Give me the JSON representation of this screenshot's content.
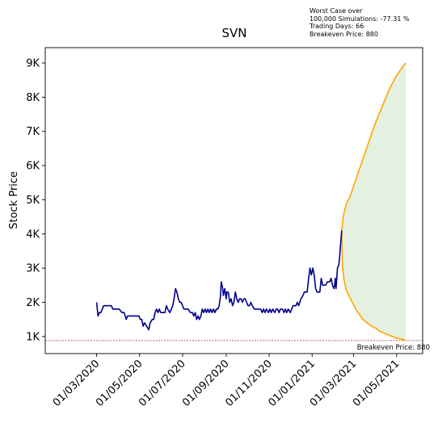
{
  "chart_data": {
    "type": "line",
    "title": "SVN",
    "ylabel": "Stock Price",
    "xlabel": "",
    "ylim": [
      500,
      9450
    ],
    "yticks": [
      {
        "value": 1000,
        "label": "1K"
      },
      {
        "value": 2000,
        "label": "2K"
      },
      {
        "value": 3000,
        "label": "3K"
      },
      {
        "value": 4000,
        "label": "4K"
      },
      {
        "value": 5000,
        "label": "5K"
      },
      {
        "value": 6000,
        "label": "6K"
      },
      {
        "value": 7000,
        "label": "7K"
      },
      {
        "value": 8000,
        "label": "8K"
      },
      {
        "value": 9000,
        "label": "9K"
      }
    ],
    "x_range": [
      "2019-12-19",
      "2021-06-07"
    ],
    "xticks": [
      {
        "date": "2020-03-01",
        "label": "01/03/2020"
      },
      {
        "date": "2020-05-01",
        "label": "01/05/2020"
      },
      {
        "date": "2020-07-01",
        "label": "01/07/2020"
      },
      {
        "date": "2020-09-01",
        "label": "01/09/2020"
      },
      {
        "date": "2020-11-01",
        "label": "01/11/2020"
      },
      {
        "date": "2021-01-01",
        "label": "01/01/2021"
      },
      {
        "date": "2021-03-01",
        "label": "01/03/2021"
      },
      {
        "date": "2021-05-01",
        "label": "01/05/2021"
      }
    ],
    "grid": false,
    "colors": {
      "history": "#00008b",
      "projection": "#ffa500",
      "band_fill": "#d5e8cf",
      "breakeven": "#b22222"
    },
    "history": {
      "name": "",
      "points": [
        [
          "2020-03-01",
          2000
        ],
        [
          "2020-03-03",
          1600
        ],
        [
          "2020-03-05",
          1700
        ],
        [
          "2020-03-07",
          1700
        ],
        [
          "2020-03-09",
          1800
        ],
        [
          "2020-03-11",
          1900
        ],
        [
          "2020-03-14",
          1900
        ],
        [
          "2020-03-18",
          1900
        ],
        [
          "2020-03-22",
          1900
        ],
        [
          "2020-03-24",
          1800
        ],
        [
          "2020-03-28",
          1800
        ],
        [
          "2020-04-02",
          1800
        ],
        [
          "2020-04-06",
          1700
        ],
        [
          "2020-04-09",
          1700
        ],
        [
          "2020-04-12",
          1500
        ],
        [
          "2020-04-14",
          1600
        ],
        [
          "2020-04-18",
          1600
        ],
        [
          "2020-04-22",
          1600
        ],
        [
          "2020-04-26",
          1600
        ],
        [
          "2020-04-30",
          1600
        ],
        [
          "2020-05-02",
          1500
        ],
        [
          "2020-05-04",
          1500
        ],
        [
          "2020-05-06",
          1300
        ],
        [
          "2020-05-08",
          1400
        ],
        [
          "2020-05-11",
          1300
        ],
        [
          "2020-05-14",
          1200
        ],
        [
          "2020-05-16",
          1400
        ],
        [
          "2020-05-19",
          1500
        ],
        [
          "2020-05-21",
          1500
        ],
        [
          "2020-05-23",
          1700
        ],
        [
          "2020-05-25",
          1800
        ],
        [
          "2020-05-27",
          1700
        ],
        [
          "2020-05-29",
          1800
        ],
        [
          "2020-05-31",
          1700
        ],
        [
          "2020-06-03",
          1700
        ],
        [
          "2020-06-06",
          1700
        ],
        [
          "2020-06-08",
          1900
        ],
        [
          "2020-06-10",
          1800
        ],
        [
          "2020-06-13",
          1700
        ],
        [
          "2020-06-15",
          1800
        ],
        [
          "2020-06-17",
          1900
        ],
        [
          "2020-06-19",
          2100
        ],
        [
          "2020-06-21",
          2400
        ],
        [
          "2020-06-23",
          2300
        ],
        [
          "2020-06-25",
          2100
        ],
        [
          "2020-06-27",
          2000
        ],
        [
          "2020-06-29",
          2000
        ],
        [
          "2020-07-01",
          1900
        ],
        [
          "2020-07-03",
          1800
        ],
        [
          "2020-07-06",
          1800
        ],
        [
          "2020-07-09",
          1800
        ],
        [
          "2020-07-12",
          1700
        ],
        [
          "2020-07-15",
          1700
        ],
        [
          "2020-07-17",
          1600
        ],
        [
          "2020-07-19",
          1700
        ],
        [
          "2020-07-21",
          1500
        ],
        [
          "2020-07-23",
          1600
        ],
        [
          "2020-07-25",
          1500
        ],
        [
          "2020-07-27",
          1600
        ],
        [
          "2020-07-29",
          1800
        ],
        [
          "2020-07-31",
          1700
        ],
        [
          "2020-08-02",
          1800
        ],
        [
          "2020-08-04",
          1700
        ],
        [
          "2020-08-06",
          1800
        ],
        [
          "2020-08-08",
          1700
        ],
        [
          "2020-08-10",
          1800
        ],
        [
          "2020-08-12",
          1700
        ],
        [
          "2020-08-14",
          1800
        ],
        [
          "2020-08-16",
          1700
        ],
        [
          "2020-08-18",
          1800
        ],
        [
          "2020-08-20",
          1800
        ],
        [
          "2020-08-22",
          1900
        ],
        [
          "2020-08-24",
          2200
        ],
        [
          "2020-08-25",
          2600
        ],
        [
          "2020-08-27",
          2400
        ],
        [
          "2020-08-28",
          2200
        ],
        [
          "2020-08-30",
          2400
        ],
        [
          "2020-09-01",
          2100
        ],
        [
          "2020-09-02",
          2300
        ],
        [
          "2020-09-04",
          2300
        ],
        [
          "2020-09-06",
          2000
        ],
        [
          "2020-09-08",
          2100
        ],
        [
          "2020-09-10",
          1900
        ],
        [
          "2020-09-12",
          2000
        ],
        [
          "2020-09-14",
          2300
        ],
        [
          "2020-09-16",
          2100
        ],
        [
          "2020-09-18",
          2000
        ],
        [
          "2020-09-20",
          2100
        ],
        [
          "2020-09-22",
          2100
        ],
        [
          "2020-09-24",
          2000
        ],
        [
          "2020-09-26",
          2100
        ],
        [
          "2020-09-28",
          2100
        ],
        [
          "2020-09-30",
          2000
        ],
        [
          "2020-10-02",
          1900
        ],
        [
          "2020-10-04",
          1900
        ],
        [
          "2020-10-06",
          2000
        ],
        [
          "2020-10-08",
          1900
        ],
        [
          "2020-10-11",
          1800
        ],
        [
          "2020-10-14",
          1800
        ],
        [
          "2020-10-17",
          1800
        ],
        [
          "2020-10-20",
          1800
        ],
        [
          "2020-10-22",
          1700
        ],
        [
          "2020-10-24",
          1800
        ],
        [
          "2020-10-26",
          1700
        ],
        [
          "2020-10-28",
          1800
        ],
        [
          "2020-10-31",
          1700
        ],
        [
          "2020-11-02",
          1800
        ],
        [
          "2020-11-04",
          1700
        ],
        [
          "2020-11-06",
          1800
        ],
        [
          "2020-11-09",
          1700
        ],
        [
          "2020-11-11",
          1800
        ],
        [
          "2020-11-13",
          1800
        ],
        [
          "2020-11-15",
          1700
        ],
        [
          "2020-11-17",
          1800
        ],
        [
          "2020-11-20",
          1800
        ],
        [
          "2020-11-22",
          1700
        ],
        [
          "2020-11-24",
          1800
        ],
        [
          "2020-11-26",
          1700
        ],
        [
          "2020-11-28",
          1800
        ],
        [
          "2020-12-01",
          1700
        ],
        [
          "2020-12-03",
          1800
        ],
        [
          "2020-12-05",
          1900
        ],
        [
          "2020-12-07",
          1900
        ],
        [
          "2020-12-09",
          1900
        ],
        [
          "2020-12-11",
          2000
        ],
        [
          "2020-12-13",
          1900
        ],
        [
          "2020-12-16",
          2100
        ],
        [
          "2020-12-19",
          2200
        ],
        [
          "2020-12-21",
          2300
        ],
        [
          "2020-12-23",
          2300
        ],
        [
          "2020-12-25",
          2300
        ],
        [
          "2020-12-27",
          2700
        ],
        [
          "2020-12-29",
          3000
        ],
        [
          "2020-12-31",
          2800
        ],
        [
          "2021-01-02",
          3000
        ],
        [
          "2021-01-04",
          2800
        ],
        [
          "2021-01-06",
          2400
        ],
        [
          "2021-01-08",
          2300
        ],
        [
          "2021-01-10",
          2300
        ],
        [
          "2021-01-12",
          2300
        ],
        [
          "2021-01-14",
          2700
        ],
        [
          "2021-01-16",
          2500
        ],
        [
          "2021-01-18",
          2500
        ],
        [
          "2021-01-20",
          2500
        ],
        [
          "2021-01-23",
          2600
        ],
        [
          "2021-01-26",
          2600
        ],
        [
          "2021-01-28",
          2700
        ],
        [
          "2021-01-30",
          2500
        ],
        [
          "2021-02-01",
          2400
        ],
        [
          "2021-02-02",
          2500
        ],
        [
          "2021-02-03",
          2700
        ],
        [
          "2021-02-04",
          2400
        ],
        [
          "2021-02-06",
          3000
        ],
        [
          "2021-02-08",
          3100
        ],
        [
          "2021-02-09",
          3300
        ],
        [
          "2021-02-10",
          3600
        ],
        [
          "2021-02-11",
          3800
        ],
        [
          "2021-02-12",
          4100
        ]
      ]
    },
    "projection_upper": {
      "name": "",
      "points": [
        [
          "2021-02-12",
          4100
        ],
        [
          "2021-02-15",
          4600
        ],
        [
          "2021-02-19",
          4900
        ],
        [
          "2021-02-24",
          5100
        ],
        [
          "2021-03-01",
          5400
        ],
        [
          "2021-03-06",
          5700
        ],
        [
          "2021-03-11",
          6000
        ],
        [
          "2021-03-16",
          6300
        ],
        [
          "2021-03-21",
          6600
        ],
        [
          "2021-03-26",
          6900
        ],
        [
          "2021-03-31",
          7200
        ],
        [
          "2021-04-05",
          7450
        ],
        [
          "2021-04-10",
          7700
        ],
        [
          "2021-04-15",
          7950
        ],
        [
          "2021-04-20",
          8200
        ],
        [
          "2021-04-25",
          8400
        ],
        [
          "2021-04-30",
          8600
        ],
        [
          "2021-05-05",
          8750
        ],
        [
          "2021-05-10",
          8900
        ],
        [
          "2021-05-14",
          9000
        ]
      ]
    },
    "projection_lower": {
      "name": "",
      "points": [
        [
          "2021-02-12",
          4100
        ],
        [
          "2021-02-13",
          3100
        ],
        [
          "2021-02-15",
          2700
        ],
        [
          "2021-02-18",
          2400
        ],
        [
          "2021-02-22",
          2200
        ],
        [
          "2021-02-27",
          2000
        ],
        [
          "2021-03-04",
          1800
        ],
        [
          "2021-03-09",
          1650
        ],
        [
          "2021-03-14",
          1500
        ],
        [
          "2021-03-20",
          1400
        ],
        [
          "2021-03-26",
          1300
        ],
        [
          "2021-04-01",
          1250
        ],
        [
          "2021-04-07",
          1150
        ],
        [
          "2021-04-13",
          1100
        ],
        [
          "2021-04-19",
          1050
        ],
        [
          "2021-04-25",
          1000
        ],
        [
          "2021-05-01",
          950
        ],
        [
          "2021-05-07",
          930
        ],
        [
          "2021-05-14",
          880
        ]
      ]
    },
    "breakeven": {
      "value": 880,
      "label": "Breakeven Price: 880"
    },
    "annotation_lines": [
      "Worst Case over",
      "100,000 Simulations: -77.31 %",
      "Trading Days: 66",
      "Breakeven Price: 880"
    ]
  }
}
